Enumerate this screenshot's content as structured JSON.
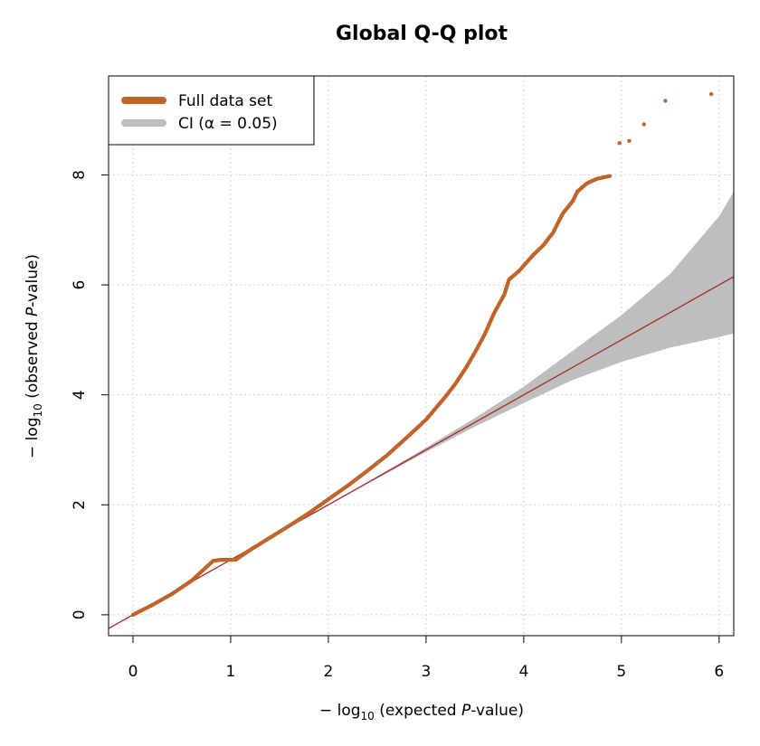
{
  "chart_data": {
    "type": "scatter",
    "title": "Global Q-Q plot",
    "xlabel": {
      "prefix": "− log",
      "sub": "10",
      "mid": " (expected ",
      "italic": "P",
      "suffix": "-value)"
    },
    "ylabel": {
      "prefix": "− log",
      "sub": "10",
      "mid": " (observed ",
      "italic": "P",
      "suffix": "-value)"
    },
    "xlim": [
      -0.25,
      6.15
    ],
    "ylim": [
      -0.38,
      9.8
    ],
    "xticks": [
      0,
      1,
      2,
      3,
      4,
      5,
      6
    ],
    "yticks": [
      0,
      2,
      4,
      6,
      8
    ],
    "grid": true,
    "legend": {
      "position": "top-left",
      "entries": [
        {
          "label": "Full data set",
          "color": "#c0642a"
        },
        {
          "label": "CI (α = 0.05)",
          "color": "#bebebe"
        }
      ]
    },
    "reference_line": {
      "slope": 1,
      "intercept": 0,
      "color": "#a52a2a"
    },
    "confidence_band": {
      "color": "#bebebe",
      "x": [
        0,
        1,
        2,
        3,
        3.5,
        4,
        4.5,
        5,
        5.5,
        6,
        6.15
      ],
      "lower": [
        0,
        1,
        2,
        2.96,
        3.42,
        3.85,
        4.27,
        4.6,
        4.86,
        5.05,
        5.12
      ],
      "upper": [
        0,
        1,
        2,
        3.04,
        3.58,
        4.15,
        4.8,
        5.45,
        6.2,
        7.25,
        7.7
      ]
    },
    "series": [
      {
        "color": "#c0642a",
        "points": [
          [
            0,
            0
          ],
          [
            0.2,
            0.18
          ],
          [
            0.4,
            0.38
          ],
          [
            0.6,
            0.62
          ],
          [
            0.82,
            0.98
          ],
          [
            0.9,
            1.0
          ],
          [
            1.05,
            1.0
          ],
          [
            1.2,
            1.18
          ],
          [
            1.4,
            1.4
          ],
          [
            1.6,
            1.62
          ],
          [
            1.8,
            1.85
          ],
          [
            2.0,
            2.1
          ],
          [
            2.2,
            2.35
          ],
          [
            2.4,
            2.62
          ],
          [
            2.6,
            2.9
          ],
          [
            2.8,
            3.22
          ],
          [
            3.0,
            3.55
          ],
          [
            3.1,
            3.76
          ],
          [
            3.2,
            3.97
          ],
          [
            3.3,
            4.2
          ],
          [
            3.4,
            4.47
          ],
          [
            3.5,
            4.77
          ],
          [
            3.6,
            5.1
          ],
          [
            3.7,
            5.5
          ],
          [
            3.8,
            5.82
          ],
          [
            3.85,
            6.1
          ],
          [
            3.95,
            6.25
          ],
          [
            4.1,
            6.55
          ],
          [
            4.2,
            6.72
          ],
          [
            4.3,
            6.95
          ],
          [
            4.4,
            7.3
          ],
          [
            4.5,
            7.52
          ],
          [
            4.55,
            7.7
          ],
          [
            4.65,
            7.85
          ],
          [
            4.75,
            7.93
          ],
          [
            4.88,
            7.98
          ],
          [
            4.98,
            8.58
          ],
          [
            5.08,
            8.62
          ],
          [
            5.23,
            8.92
          ],
          [
            5.45,
            9.35
          ],
          [
            5.92,
            9.47
          ]
        ]
      }
    ]
  }
}
